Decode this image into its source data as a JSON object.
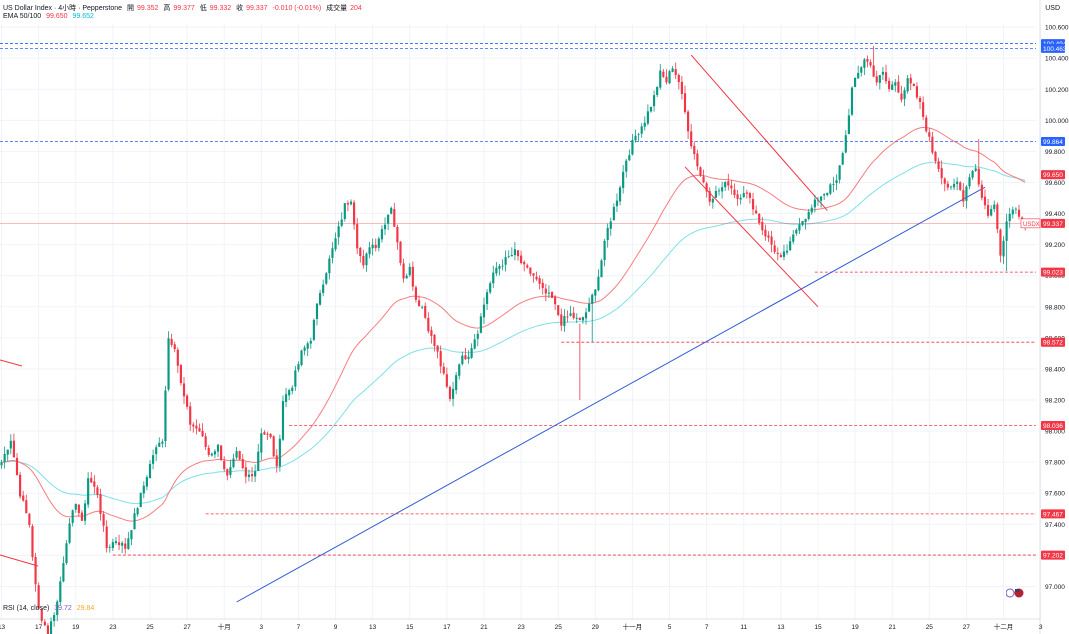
{
  "header": {
    "symbol": "US Dollar Index · 4小時 · Pepperstone",
    "open_label": "開",
    "open": "99.352",
    "high_label": "高",
    "high": "99.377",
    "low_label": "低",
    "low": "99.332",
    "close_label": "收",
    "close": "99.337",
    "change": "-0.010 (-0.01%)",
    "volume_label": "成交量",
    "volume": "204",
    "ema_label": "EMA 50/100",
    "ema50": "99.650",
    "ema100": "99.652"
  },
  "rsi": {
    "label": "RSI (14, close)",
    "v1": "39.72",
    "v2": "29.84"
  },
  "colors": {
    "up": "#089981",
    "down": "#f23645",
    "ema50": "#f77c80",
    "ema100": "#7ee0e8",
    "trendline": "#2f5bd4",
    "channel": "#f23645",
    "blue_tag": "#2962ff",
    "red_tag": "#f23645"
  },
  "chart_data": {
    "type": "candlestick",
    "unit": "USD",
    "ylim": [
      96.9,
      100.62
    ],
    "y_ticks": [
      "100.600",
      "100.400",
      "100.200",
      "100.000",
      "99.800",
      "99.600",
      "99.400",
      "99.200",
      "99.000",
      "98.800",
      "98.600",
      "98.400",
      "98.200",
      "98.000",
      "97.800",
      "97.600",
      "97.400",
      "97.200",
      "97.000"
    ],
    "x_tick_labels": [
      "13",
      "17",
      "19",
      "23",
      "25",
      "27",
      "十月",
      "3",
      "7",
      "9",
      "13",
      "15",
      "17",
      "21",
      "23",
      "25",
      "29",
      "十一月",
      "5",
      "7",
      "11",
      "13",
      "15",
      "19",
      "21",
      "25",
      "27",
      "十二月",
      "3"
    ],
    "x_tick_bars": [
      0,
      12,
      24,
      36,
      48,
      60,
      72,
      84,
      96,
      108,
      120,
      132,
      144,
      156,
      168,
      180,
      192,
      204,
      216,
      228,
      240,
      252,
      264,
      276,
      288,
      300,
      312,
      324,
      336
    ],
    "price_tags": [
      {
        "label": "100.494",
        "value": 100.494,
        "color": "#2962ff",
        "line": "dashed"
      },
      {
        "label": "100.463",
        "value": 100.463,
        "color": "#2962ff",
        "line": "dashed"
      },
      {
        "label": "99.864",
        "value": 99.864,
        "color": "#2962ff",
        "line": "dashed"
      },
      {
        "label": "99.652",
        "value": 99.652,
        "color": "#7ee0e8",
        "line": "none"
      },
      {
        "label": "99.650",
        "value": 99.65,
        "color": "#f23645",
        "line": "none"
      },
      {
        "label": "99.337",
        "value": 99.337,
        "color": "#f23645",
        "line": "solid",
        "prefix": "USDX"
      },
      {
        "label": "99.023",
        "value": 99.023,
        "color": "#f23645",
        "line": "dashed"
      },
      {
        "label": "98.572",
        "value": 98.572,
        "color": "#f23645",
        "line": "dashed"
      },
      {
        "label": "98.036",
        "value": 98.036,
        "color": "#f23645",
        "line": "dashed"
      },
      {
        "label": "97.467",
        "value": 97.467,
        "color": "#f23645",
        "line": "dashed"
      },
      {
        "label": "97.202",
        "value": 97.202,
        "color": "#f23645",
        "line": "dashed"
      }
    ],
    "level_starts": {
      "99.023": 263,
      "98.572": 181,
      "98.036": 93,
      "97.467": 66,
      "97.202": 36
    },
    "trendline": {
      "from": [
        76,
        96.9
      ],
      "to": [
        318,
        99.57
      ]
    },
    "channel_upper": {
      "from": [
        223,
        100.42
      ],
      "to": [
        267,
        99.42
      ]
    },
    "channel_lower": {
      "from": [
        221,
        99.7
      ],
      "to": [
        264,
        98.8
      ]
    },
    "anchors": [
      [
        0,
        97.8
      ],
      [
        3,
        97.95
      ],
      [
        6,
        97.6
      ],
      [
        9,
        97.4
      ],
      [
        11,
        97.0
      ],
      [
        12,
        96.85
      ],
      [
        15,
        96.7
      ],
      [
        18,
        96.9
      ],
      [
        21,
        97.3
      ],
      [
        24,
        97.55
      ],
      [
        26,
        97.4
      ],
      [
        28,
        97.7
      ],
      [
        31,
        97.6
      ],
      [
        34,
        97.25
      ],
      [
        37,
        97.3
      ],
      [
        40,
        97.25
      ],
      [
        43,
        97.45
      ],
      [
        46,
        97.65
      ],
      [
        49,
        97.85
      ],
      [
        52,
        97.95
      ],
      [
        54,
        98.6
      ],
      [
        56,
        98.55
      ],
      [
        58,
        98.3
      ],
      [
        61,
        98.05
      ],
      [
        64,
        98.0
      ],
      [
        67,
        97.85
      ],
      [
        70,
        97.9
      ],
      [
        73,
        97.7
      ],
      [
        76,
        97.85
      ],
      [
        79,
        97.7
      ],
      [
        82,
        97.75
      ],
      [
        84,
        98.0
      ],
      [
        87,
        97.95
      ],
      [
        89,
        97.75
      ],
      [
        91,
        98.2
      ],
      [
        94,
        98.3
      ],
      [
        97,
        98.5
      ],
      [
        100,
        98.6
      ],
      [
        103,
        98.9
      ],
      [
        106,
        99.1
      ],
      [
        109,
        99.3
      ],
      [
        111,
        99.45
      ],
      [
        113,
        99.5
      ],
      [
        115,
        99.2
      ],
      [
        117,
        99.05
      ],
      [
        119,
        99.2
      ],
      [
        121,
        99.2
      ],
      [
        124,
        99.35
      ],
      [
        126,
        99.45
      ],
      [
        128,
        99.2
      ],
      [
        130,
        99.0
      ],
      [
        132,
        99.05
      ],
      [
        134,
        98.85
      ],
      [
        136,
        98.8
      ],
      [
        139,
        98.6
      ],
      [
        141,
        98.5
      ],
      [
        143,
        98.35
      ],
      [
        145,
        98.2
      ],
      [
        148,
        98.45
      ],
      [
        151,
        98.5
      ],
      [
        154,
        98.65
      ],
      [
        157,
        98.9
      ],
      [
        160,
        99.05
      ],
      [
        163,
        99.1
      ],
      [
        166,
        99.15
      ],
      [
        169,
        99.05
      ],
      [
        172,
        99.0
      ],
      [
        175,
        98.9
      ],
      [
        178,
        98.85
      ],
      [
        181,
        98.7
      ],
      [
        184,
        98.75
      ],
      [
        187,
        98.7
      ],
      [
        190,
        98.8
      ],
      [
        193,
        99.0
      ],
      [
        196,
        99.3
      ],
      [
        199,
        99.5
      ],
      [
        202,
        99.75
      ],
      [
        205,
        99.9
      ],
      [
        208,
        100.0
      ],
      [
        211,
        100.15
      ],
      [
        213,
        100.3
      ],
      [
        215,
        100.25
      ],
      [
        217,
        100.35
      ],
      [
        219,
        100.25
      ],
      [
        221,
        100.05
      ],
      [
        223,
        99.85
      ],
      [
        226,
        99.65
      ],
      [
        229,
        99.5
      ],
      [
        232,
        99.55
      ],
      [
        235,
        99.6
      ],
      [
        238,
        99.5
      ],
      [
        240,
        99.55
      ],
      [
        243,
        99.45
      ],
      [
        246,
        99.3
      ],
      [
        249,
        99.2
      ],
      [
        252,
        99.1
      ],
      [
        255,
        99.2
      ],
      [
        258,
        99.35
      ],
      [
        261,
        99.4
      ],
      [
        264,
        99.5
      ],
      [
        267,
        99.55
      ],
      [
        270,
        99.6
      ],
      [
        273,
        99.9
      ],
      [
        275,
        100.2
      ],
      [
        277,
        100.3
      ],
      [
        279,
        100.4
      ],
      [
        281,
        100.35
      ],
      [
        283,
        100.25
      ],
      [
        285,
        100.3
      ],
      [
        287,
        100.2
      ],
      [
        289,
        100.25
      ],
      [
        291,
        100.15
      ],
      [
        293,
        100.25
      ],
      [
        295,
        100.2
      ],
      [
        297,
        100.1
      ],
      [
        299,
        99.95
      ],
      [
        301,
        99.8
      ],
      [
        303,
        99.7
      ],
      [
        305,
        99.6
      ],
      [
        307,
        99.55
      ],
      [
        309,
        99.6
      ],
      [
        311,
        99.5
      ],
      [
        313,
        99.65
      ],
      [
        315,
        99.7
      ],
      [
        317,
        99.5
      ],
      [
        319,
        99.4
      ],
      [
        321,
        99.45
      ],
      [
        323,
        99.15
      ],
      [
        325,
        99.35
      ],
      [
        327,
        99.45
      ],
      [
        329,
        99.4
      ],
      [
        331,
        99.337
      ]
    ]
  }
}
